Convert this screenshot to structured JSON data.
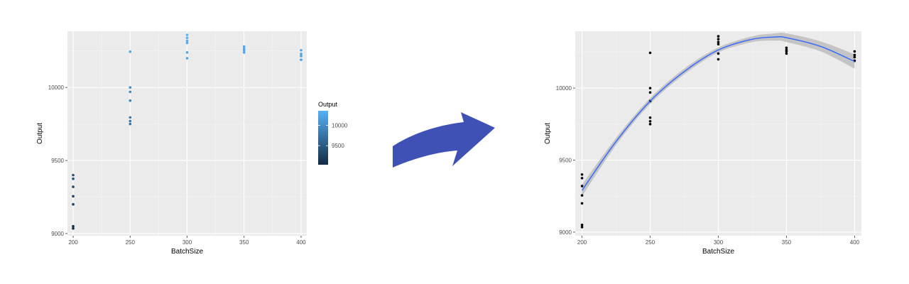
{
  "chart_data": [
    {
      "type": "scatter",
      "title": "",
      "xlabel": "BatchSize",
      "ylabel": "Output",
      "xlim": [
        195,
        405
      ],
      "ylim": [
        8985,
        10385
      ],
      "x_ticks": [
        200,
        250,
        300,
        350,
        400
      ],
      "y_ticks": [
        9000,
        9500,
        10000
      ],
      "grid": true,
      "legend": {
        "position": "right",
        "title": "Output",
        "type": "colorbar",
        "labels": [
          10000,
          9500
        ],
        "range": [
          9030,
          10360
        ],
        "colors": [
          "#132b43",
          "#56b1f7"
        ]
      },
      "points": [
        {
          "x": 200,
          "y": 9400
        },
        {
          "x": 200,
          "y": 9375
        },
        {
          "x": 200,
          "y": 9320
        },
        {
          "x": 200,
          "y": 9255
        },
        {
          "x": 200,
          "y": 9200
        },
        {
          "x": 200,
          "y": 9050
        },
        {
          "x": 200,
          "y": 9035
        },
        {
          "x": 250,
          "y": 10245
        },
        {
          "x": 250,
          "y": 10000
        },
        {
          "x": 250,
          "y": 9970
        },
        {
          "x": 250,
          "y": 9910
        },
        {
          "x": 250,
          "y": 9795
        },
        {
          "x": 250,
          "y": 9770
        },
        {
          "x": 250,
          "y": 9750
        },
        {
          "x": 300,
          "y": 10360
        },
        {
          "x": 300,
          "y": 10340
        },
        {
          "x": 300,
          "y": 10320
        },
        {
          "x": 300,
          "y": 10305
        },
        {
          "x": 300,
          "y": 10240
        },
        {
          "x": 300,
          "y": 10200
        },
        {
          "x": 350,
          "y": 10280
        },
        {
          "x": 350,
          "y": 10265
        },
        {
          "x": 350,
          "y": 10255
        },
        {
          "x": 350,
          "y": 10240
        },
        {
          "x": 400,
          "y": 10255
        },
        {
          "x": 400,
          "y": 10230
        },
        {
          "x": 400,
          "y": 10215
        },
        {
          "x": 400,
          "y": 10190
        }
      ]
    },
    {
      "type": "scatter",
      "title": "",
      "xlabel": "BatchSize",
      "ylabel": "Output",
      "xlim": [
        195,
        405
      ],
      "ylim": [
        8975,
        10395
      ],
      "x_ticks": [
        200,
        250,
        300,
        350,
        400
      ],
      "y_ticks": [
        9000,
        9500,
        10000
      ],
      "grid": true,
      "point_color": "#000000",
      "points": [
        {
          "x": 200,
          "y": 9400
        },
        {
          "x": 200,
          "y": 9375
        },
        {
          "x": 200,
          "y": 9320
        },
        {
          "x": 200,
          "y": 9255
        },
        {
          "x": 200,
          "y": 9200
        },
        {
          "x": 200,
          "y": 9050
        },
        {
          "x": 200,
          "y": 9035
        },
        {
          "x": 250,
          "y": 10245
        },
        {
          "x": 250,
          "y": 10000
        },
        {
          "x": 250,
          "y": 9970
        },
        {
          "x": 250,
          "y": 9910
        },
        {
          "x": 250,
          "y": 9795
        },
        {
          "x": 250,
          "y": 9770
        },
        {
          "x": 250,
          "y": 9750
        },
        {
          "x": 300,
          "y": 10360
        },
        {
          "x": 300,
          "y": 10340
        },
        {
          "x": 300,
          "y": 10320
        },
        {
          "x": 300,
          "y": 10305
        },
        {
          "x": 300,
          "y": 10240
        },
        {
          "x": 300,
          "y": 10200
        },
        {
          "x": 350,
          "y": 10280
        },
        {
          "x": 350,
          "y": 10265
        },
        {
          "x": 350,
          "y": 10255
        },
        {
          "x": 350,
          "y": 10240
        },
        {
          "x": 400,
          "y": 10255
        },
        {
          "x": 400,
          "y": 10230
        },
        {
          "x": 400,
          "y": 10215
        },
        {
          "x": 400,
          "y": 10190
        }
      ],
      "fit": {
        "method": "quadratic",
        "color": "#3366ff",
        "band_color": "#bdbdbd",
        "x": [
          200,
          225,
          250,
          275,
          300,
          325,
          342,
          350,
          375,
          400
        ],
        "y": [
          9290,
          9630,
          9910,
          10115,
          10265,
          10340,
          10355,
          10350,
          10290,
          10185
        ],
        "lower": [
          9250,
          9605,
          9890,
          10095,
          10248,
          10320,
          10330,
          10320,
          10255,
          10135
        ],
        "upper": [
          9330,
          9655,
          9930,
          10135,
          10282,
          10360,
          10380,
          10380,
          10325,
          10235
        ]
      }
    }
  ],
  "arrow": {
    "color": "#3f51b5",
    "icon": "curved-arrow-right-icon"
  }
}
